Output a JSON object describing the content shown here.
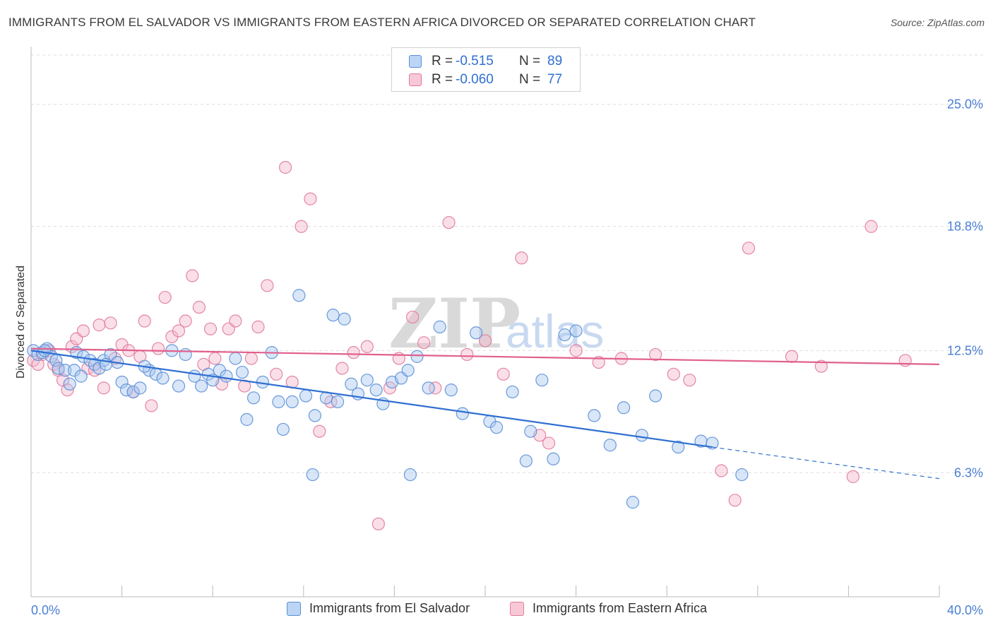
{
  "title": "IMMIGRANTS FROM EL SALVADOR VS IMMIGRANTS FROM EASTERN AFRICA DIVORCED OR SEPARATED CORRELATION CHART",
  "source": "Source: ZipAtlas.com",
  "watermark": {
    "zip": "ZIP",
    "atlas": "atlas"
  },
  "legend": [
    {
      "r_label": "R =",
      "r_value": "-0.515",
      "n_label": "N =",
      "n_value": "89"
    },
    {
      "r_label": "R =",
      "r_value": "-0.060",
      "n_label": "N =",
      "n_value": "77"
    }
  ],
  "colors": {
    "blue_fill": "#a9c7f0",
    "blue_stroke": "#5b8fd8",
    "blue_line": "#2f6fd1",
    "pink_fill": "#f5b8cb",
    "pink_stroke": "#e07a9c",
    "pink_line": "#e0608d",
    "grid": "#dddddd",
    "tick_label": "#4a7fd4"
  },
  "chart_data": {
    "type": "scatter",
    "title": "IMMIGRANTS FROM EL SALVADOR VS IMMIGRANTS FROM EASTERN AFRICA DIVORCED OR SEPARATED CORRELATION CHART",
    "xlabel": "",
    "ylabel": "Divorced or Separated",
    "xlim": [
      0,
      40
    ],
    "ylim": [
      0,
      27.5
    ],
    "x_tick_labels": [
      "0.0%",
      "40.0%"
    ],
    "y_ticks": [
      6.3,
      12.5,
      18.8,
      25.0
    ],
    "y_tick_labels": [
      "6.3%",
      "12.5%",
      "18.8%",
      "25.0%"
    ],
    "grid": true,
    "legend_position": "top-center",
    "series": [
      {
        "name": "Immigrants from El Salvador",
        "color": "#5b8fd8",
        "trend": {
          "x": [
            0,
            30.0
          ],
          "y": [
            12.5,
            7.6
          ],
          "dashed_to": [
            40,
            6.0
          ]
        },
        "points": [
          [
            0.1,
            12.5
          ],
          [
            0.3,
            12.3
          ],
          [
            0.5,
            12.4
          ],
          [
            0.7,
            12.6
          ],
          [
            0.9,
            12.2
          ],
          [
            1.1,
            12.0
          ],
          [
            1.2,
            11.6
          ],
          [
            1.5,
            11.5
          ],
          [
            1.7,
            10.8
          ],
          [
            1.9,
            11.5
          ],
          [
            2.0,
            12.4
          ],
          [
            2.2,
            11.2
          ],
          [
            2.3,
            12.2
          ],
          [
            2.6,
            12.0
          ],
          [
            2.8,
            11.8
          ],
          [
            3.0,
            11.6
          ],
          [
            3.2,
            12.0
          ],
          [
            3.5,
            12.3
          ],
          [
            3.8,
            11.9
          ],
          [
            4.0,
            10.9
          ],
          [
            4.2,
            10.5
          ],
          [
            4.5,
            10.4
          ],
          [
            4.8,
            10.6
          ],
          [
            5.2,
            11.5
          ],
          [
            5.5,
            11.3
          ],
          [
            5.8,
            11.1
          ],
          [
            6.2,
            12.5
          ],
          [
            6.5,
            10.7
          ],
          [
            6.8,
            12.3
          ],
          [
            7.2,
            11.2
          ],
          [
            7.5,
            10.7
          ],
          [
            7.8,
            11.3
          ],
          [
            8.0,
            11.0
          ],
          [
            8.3,
            11.5
          ],
          [
            8.6,
            11.2
          ],
          [
            9.0,
            12.1
          ],
          [
            9.5,
            9.0
          ],
          [
            9.8,
            10.1
          ],
          [
            10.2,
            10.9
          ],
          [
            10.6,
            12.4
          ],
          [
            10.9,
            9.9
          ],
          [
            11.1,
            8.5
          ],
          [
            11.5,
            9.9
          ],
          [
            11.8,
            15.3
          ],
          [
            12.1,
            10.2
          ],
          [
            12.5,
            9.2
          ],
          [
            13.0,
            10.1
          ],
          [
            13.3,
            14.3
          ],
          [
            13.5,
            9.9
          ],
          [
            13.8,
            14.1
          ],
          [
            14.1,
            10.8
          ],
          [
            14.4,
            10.3
          ],
          [
            14.8,
            11.0
          ],
          [
            15.2,
            10.5
          ],
          [
            15.5,
            9.8
          ],
          [
            15.9,
            10.9
          ],
          [
            16.3,
            11.1
          ],
          [
            16.6,
            11.5
          ],
          [
            17.0,
            12.2
          ],
          [
            17.5,
            10.6
          ],
          [
            18.0,
            13.7
          ],
          [
            18.5,
            10.5
          ],
          [
            19.0,
            9.3
          ],
          [
            19.6,
            13.4
          ],
          [
            20.2,
            8.9
          ],
          [
            20.5,
            8.6
          ],
          [
            21.2,
            10.4
          ],
          [
            21.8,
            6.9
          ],
          [
            22.0,
            8.4
          ],
          [
            22.5,
            11.0
          ],
          [
            23.0,
            7.0
          ],
          [
            23.5,
            13.3
          ],
          [
            24.0,
            13.5
          ],
          [
            24.8,
            9.2
          ],
          [
            25.5,
            7.7
          ],
          [
            26.1,
            9.6
          ],
          [
            26.5,
            4.8
          ],
          [
            26.9,
            8.2
          ],
          [
            27.5,
            10.2
          ],
          [
            28.5,
            7.6
          ],
          [
            29.5,
            7.9
          ],
          [
            30.0,
            7.8
          ],
          [
            31.3,
            6.2
          ],
          [
            12.4,
            6.2
          ],
          [
            16.7,
            6.2
          ],
          [
            0.6,
            12.5
          ],
          [
            3.3,
            11.8
          ],
          [
            5.0,
            11.7
          ],
          [
            9.3,
            11.4
          ]
        ]
      },
      {
        "name": "Immigrants from Eastern Africa",
        "color": "#e07a9c",
        "trend": {
          "x": [
            0,
            40
          ],
          "y": [
            12.6,
            11.8
          ]
        },
        "points": [
          [
            0.1,
            12.0
          ],
          [
            0.3,
            11.8
          ],
          [
            0.5,
            12.3
          ],
          [
            0.8,
            12.5
          ],
          [
            1.0,
            11.8
          ],
          [
            1.2,
            11.5
          ],
          [
            1.4,
            11.0
          ],
          [
            1.6,
            10.5
          ],
          [
            1.8,
            12.7
          ],
          [
            2.0,
            13.1
          ],
          [
            2.3,
            13.5
          ],
          [
            2.5,
            11.6
          ],
          [
            2.8,
            11.5
          ],
          [
            3.0,
            13.8
          ],
          [
            3.2,
            10.6
          ],
          [
            3.5,
            13.9
          ],
          [
            3.7,
            12.1
          ],
          [
            4.0,
            12.8
          ],
          [
            4.3,
            12.5
          ],
          [
            4.5,
            10.4
          ],
          [
            4.8,
            12.2
          ],
          [
            5.0,
            14.0
          ],
          [
            5.3,
            9.7
          ],
          [
            5.6,
            12.6
          ],
          [
            5.9,
            15.2
          ],
          [
            6.2,
            13.2
          ],
          [
            6.5,
            13.5
          ],
          [
            6.8,
            14.0
          ],
          [
            7.1,
            16.3
          ],
          [
            7.4,
            14.7
          ],
          [
            7.6,
            11.8
          ],
          [
            7.9,
            13.6
          ],
          [
            8.1,
            12.1
          ],
          [
            8.4,
            10.8
          ],
          [
            8.7,
            13.6
          ],
          [
            9.0,
            14.0
          ],
          [
            9.4,
            10.7
          ],
          [
            9.7,
            12.1
          ],
          [
            10.0,
            13.7
          ],
          [
            10.4,
            15.8
          ],
          [
            10.8,
            11.3
          ],
          [
            11.2,
            21.8
          ],
          [
            11.5,
            10.9
          ],
          [
            11.9,
            18.8
          ],
          [
            12.3,
            20.2
          ],
          [
            12.7,
            8.4
          ],
          [
            13.2,
            9.9
          ],
          [
            13.7,
            11.6
          ],
          [
            14.2,
            12.4
          ],
          [
            14.8,
            12.7
          ],
          [
            15.3,
            3.7
          ],
          [
            15.8,
            10.6
          ],
          [
            16.2,
            12.1
          ],
          [
            16.8,
            14.2
          ],
          [
            17.3,
            12.9
          ],
          [
            17.8,
            10.6
          ],
          [
            18.4,
            19.0
          ],
          [
            19.2,
            12.3
          ],
          [
            20.0,
            13.0
          ],
          [
            20.8,
            11.3
          ],
          [
            21.6,
            17.2
          ],
          [
            22.4,
            8.2
          ],
          [
            22.8,
            7.8
          ],
          [
            24.0,
            12.5
          ],
          [
            25.0,
            11.9
          ],
          [
            26.0,
            12.1
          ],
          [
            27.5,
            12.3
          ],
          [
            28.3,
            11.3
          ],
          [
            29.0,
            11.0
          ],
          [
            30.4,
            6.4
          ],
          [
            31.0,
            4.9
          ],
          [
            31.6,
            17.7
          ],
          [
            33.5,
            12.2
          ],
          [
            34.8,
            11.7
          ],
          [
            36.2,
            6.1
          ],
          [
            37.0,
            18.8
          ],
          [
            38.5,
            12.0
          ]
        ]
      }
    ]
  }
}
